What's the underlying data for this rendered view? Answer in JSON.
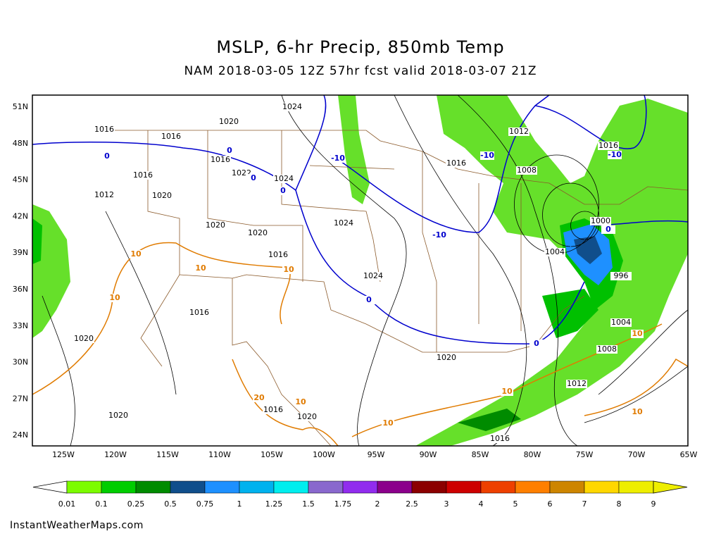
{
  "header": {
    "title": "MSLP, 6-hr Precip, 850mb Temp",
    "subtitle": "NAM 2018-03-05 12Z 57hr fcst valid 2018-03-07 21Z"
  },
  "map": {
    "lat_labels": [
      "51N",
      "48N",
      "45N",
      "42N",
      "39N",
      "36N",
      "33N",
      "30N",
      "27N",
      "24N"
    ],
    "lon_labels": [
      "125W",
      "120W",
      "115W",
      "110W",
      "105W",
      "100W",
      "95W",
      "90W",
      "85W",
      "80W",
      "75W",
      "70W",
      "65W"
    ],
    "isobar_labels": [
      "1024",
      "1020",
      "1016",
      "1016",
      "1016",
      "1016",
      "1012",
      "1020",
      "1022",
      "1024",
      "1020",
      "1020",
      "1016",
      "1024",
      "1024",
      "1016",
      "1020",
      "1020",
      "1016",
      "1020",
      "1020",
      "1016",
      "1012",
      "1008",
      "1016",
      "1000",
      "1004",
      "996",
      "1004",
      "1008",
      "1012",
      "1016"
    ],
    "cold_isotherm_labels": [
      "0",
      "0",
      "0",
      "0",
      "-10",
      "-10",
      "-10",
      "-10",
      "0",
      "0",
      "0"
    ],
    "warm_isotherm_labels": [
      "10",
      "10",
      "10",
      "10",
      "20",
      "10",
      "10",
      "10",
      "10",
      "10"
    ]
  },
  "legend": {
    "colors": [
      "#7cfc00",
      "#00cd00",
      "#008b00",
      "#104e8b",
      "#1e90ff",
      "#00b2ee",
      "#00eeee",
      "#8968cd",
      "#912cee",
      "#8b008b",
      "#8b0000",
      "#cd0000",
      "#ee4000",
      "#ff7f00",
      "#cd8500",
      "#ffd700",
      "#eeee00"
    ],
    "labels": [
      "0.01",
      "0.1",
      "0.25",
      "0.5",
      "0.75",
      "1",
      "1.25",
      "1.5",
      "1.75",
      "2",
      "2.5",
      "3",
      "4",
      "5",
      "6",
      "7",
      "8",
      "9"
    ]
  },
  "footer": {
    "credit": "InstantWeatherMaps.com"
  }
}
